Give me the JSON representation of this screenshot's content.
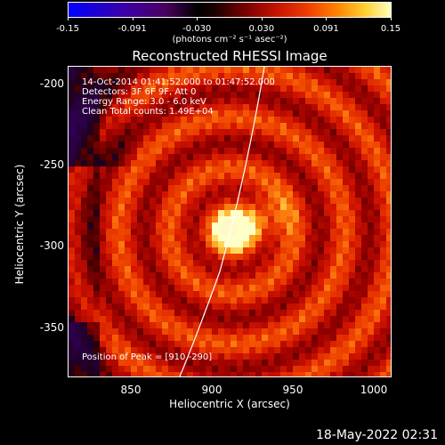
{
  "colorbar": {
    "ticks": [
      "-0.15",
      "-0.091",
      "-0.030",
      "0.030",
      "0.091",
      "0.15"
    ],
    "unit": "(photons cm⁻² s⁻¹ asec⁻²)"
  },
  "title": "Reconstructed RHESSI Image",
  "info": {
    "time": "14-Oct-2014 01:41:52.000 to 01:47:52.000",
    "detectors": "Detectors: 3F 6F 9F, Att 0",
    "energy": "Energy Range: 3.0 - 6.0 keV",
    "clean": "Clean     Total counts: 1.49E+04",
    "peak": "Position of Peak = [910,-290]"
  },
  "axes": {
    "xlabel": "Heliocentric X (arcsec)",
    "ylabel": "Heliocentric Y (arcsec)",
    "xticks": [
      "850",
      "900",
      "950",
      "1000"
    ],
    "yticks": [
      "-200",
      "-250",
      "-300",
      "-350"
    ],
    "xrange": [
      812,
      1012
    ],
    "yrange": [
      -382,
      -188
    ]
  },
  "footer": {
    "date": "18-May-2022 02:31"
  },
  "colors": {
    "background": "#000000",
    "limb": "#ffffff",
    "text": "#ffffff"
  }
}
